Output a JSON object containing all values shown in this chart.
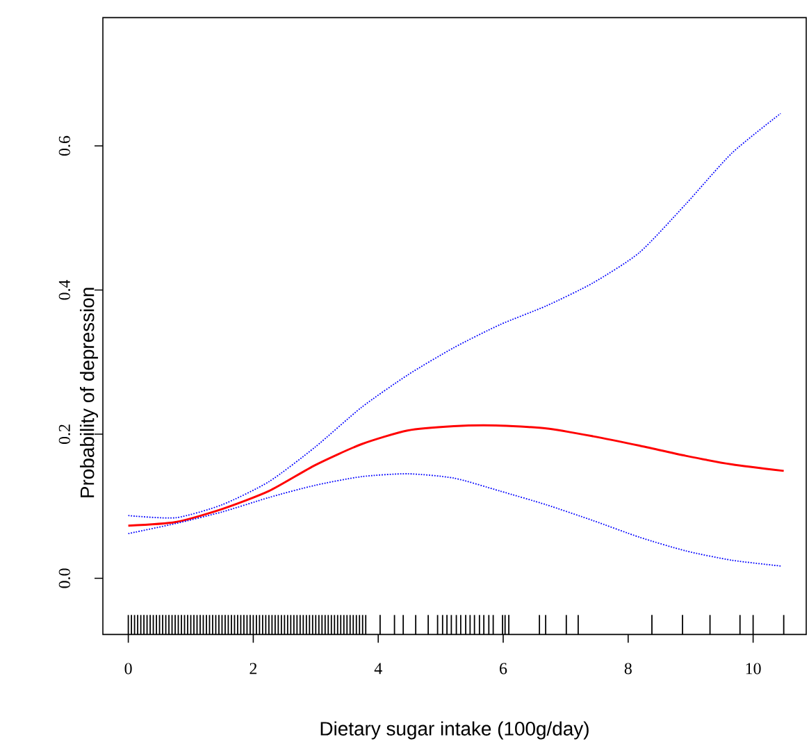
{
  "chart_data": {
    "type": "line",
    "xlabel": "Dietary sugar intake (100g/day)",
    "ylabel": "Probability of depression",
    "xlim": [
      -0.407,
      10.85
    ],
    "ylim": [
      -0.078,
      0.778
    ],
    "xticks": [
      0,
      2,
      4,
      6,
      8,
      10
    ],
    "yticks": [
      {
        "value": 0,
        "label": "0.0"
      },
      0.2,
      0.4,
      0.6
    ],
    "series": [
      {
        "type": "line",
        "color": "#ff0000",
        "line_style": "solid",
        "x": [
          0,
          0.76,
          1.5,
          2.25,
          2.99,
          3.73,
          4.47,
          5.21,
          5.88,
          6.69,
          7.44,
          8.18,
          8.92,
          9.66,
          10.49
        ],
        "values": [
          0.073,
          0.078,
          0.096,
          0.121,
          0.157,
          0.186,
          0.205,
          0.211,
          0.212,
          0.208,
          0.197,
          0.184,
          0.17,
          0.158,
          0.149
        ]
      },
      {
        "type": "line",
        "color": "#0000ff",
        "line_style": "dotted",
        "x": [
          0,
          0.76,
          1.5,
          2.25,
          2.99,
          3.73,
          4.47,
          5.21,
          5.95,
          6.69,
          7.44,
          8.18,
          8.92,
          9.66,
          10.44
        ],
        "values": [
          0.087,
          0.084,
          0.102,
          0.134,
          0.182,
          0.237,
          0.282,
          0.32,
          0.352,
          0.378,
          0.41,
          0.452,
          0.519,
          0.59,
          0.645
        ]
      },
      {
        "type": "line",
        "color": "#0000ff",
        "line_style": "dotted",
        "x": [
          0,
          0.76,
          1.5,
          2.25,
          2.99,
          3.73,
          4.47,
          5.21,
          5.95,
          6.69,
          7.44,
          8.18,
          8.92,
          9.66,
          10.44
        ],
        "values": [
          0.062,
          0.076,
          0.092,
          0.112,
          0.129,
          0.141,
          0.145,
          0.139,
          0.121,
          0.102,
          0.08,
          0.057,
          0.038,
          0.025,
          0.017
        ]
      },
      {
        "type": "bar",
        "color": "#000000",
        "x": [
          0,
          0.05,
          0.1,
          0.15,
          0.2,
          0.25,
          0.3,
          0.35,
          0.4,
          0.45,
          0.5,
          0.55,
          0.6,
          0.65,
          0.7,
          0.75,
          0.8,
          0.85,
          0.9,
          0.95,
          1,
          1.05,
          1.1,
          1.15,
          1.2,
          1.25,
          1.3,
          1.35,
          1.4,
          1.45,
          1.5,
          1.55,
          1.6,
          1.65,
          1.7,
          1.75,
          1.8,
          1.85,
          1.9,
          1.95,
          2,
          2.05,
          2.1,
          2.15,
          2.2,
          2.25,
          2.3,
          2.35,
          2.4,
          2.45,
          2.5,
          2.55,
          2.6,
          2.65,
          2.7,
          2.75,
          2.8,
          2.85,
          2.9,
          2.95,
          3,
          3.05,
          3.1,
          3.15,
          3.2,
          3.25,
          3.3,
          3.35,
          3.4,
          3.45,
          3.5,
          3.55,
          3.6,
          3.65,
          3.7,
          3.75,
          3.8,
          4.03,
          4.26,
          4.4,
          4.6,
          4.8,
          4.95,
          5.03,
          5.1,
          5.17,
          5.25,
          5.32,
          5.4,
          5.47,
          5.54,
          5.62,
          5.69,
          5.77,
          5.84,
          5.99,
          6.03,
          6.09,
          6.58,
          6.68,
          7.01,
          7.2,
          8.38,
          8.87,
          9.31,
          9.79,
          10,
          10.49
        ],
        "values": [
          0.027,
          0.027,
          0.027,
          0.027,
          0.027,
          0.027,
          0.027,
          0.027,
          0.027,
          0.027,
          0.027,
          0.027,
          0.027,
          0.027,
          0.027,
          0.027,
          0.027,
          0.027,
          0.027,
          0.027,
          0.027,
          0.027,
          0.027,
          0.027,
          0.027,
          0.027,
          0.027,
          0.027,
          0.027,
          0.027,
          0.027,
          0.027,
          0.027,
          0.027,
          0.027,
          0.027,
          0.027,
          0.027,
          0.027,
          0.027,
          0.027,
          0.027,
          0.027,
          0.027,
          0.027,
          0.027,
          0.027,
          0.027,
          0.027,
          0.027,
          0.027,
          0.027,
          0.027,
          0.027,
          0.027,
          0.027,
          0.027,
          0.027,
          0.027,
          0.027,
          0.027,
          0.027,
          0.027,
          0.027,
          0.027,
          0.027,
          0.027,
          0.027,
          0.027,
          0.027,
          0.027,
          0.027,
          0.027,
          0.027,
          0.027,
          0.027,
          0.027,
          0.027,
          0.027,
          0.027,
          0.027,
          0.027,
          0.027,
          0.027,
          0.027,
          0.027,
          0.027,
          0.027,
          0.027,
          0.027,
          0.027,
          0.027,
          0.027,
          0.027,
          0.027,
          0.027,
          0.027,
          0.027,
          0.027,
          0.027,
          0.027,
          0.027,
          0.027,
          0.027,
          0.027,
          0.027,
          0.027,
          0.027
        ],
        "base": [
          -0.078,
          -0.078,
          -0.078,
          -0.078,
          -0.078,
          -0.078,
          -0.078,
          -0.078,
          -0.078,
          -0.078,
          -0.078,
          -0.078,
          -0.078,
          -0.078,
          -0.078,
          -0.078,
          -0.078,
          -0.078,
          -0.078,
          -0.078,
          -0.078,
          -0.078,
          -0.078,
          -0.078,
          -0.078,
          -0.078,
          -0.078,
          -0.078,
          -0.078,
          -0.078,
          -0.078,
          -0.078,
          -0.078,
          -0.078,
          -0.078,
          -0.078,
          -0.078,
          -0.078,
          -0.078,
          -0.078,
          -0.078,
          -0.078,
          -0.078,
          -0.078,
          -0.078,
          -0.078,
          -0.078,
          -0.078,
          -0.078,
          -0.078,
          -0.078,
          -0.078,
          -0.078,
          -0.078,
          -0.078,
          -0.078,
          -0.078,
          -0.078,
          -0.078,
          -0.078,
          -0.078,
          -0.078,
          -0.078,
          -0.078,
          -0.078,
          -0.078,
          -0.078,
          -0.078,
          -0.078,
          -0.078,
          -0.078,
          -0.078,
          -0.078,
          -0.078,
          -0.078,
          -0.078,
          -0.078,
          -0.078,
          -0.078,
          -0.078,
          -0.078,
          -0.078,
          -0.078,
          -0.078,
          -0.078,
          -0.078,
          -0.078,
          -0.078,
          -0.078,
          -0.078,
          -0.078,
          -0.078,
          -0.078,
          -0.078,
          -0.078,
          -0.078,
          -0.078,
          -0.078,
          -0.078,
          -0.078,
          -0.078,
          -0.078,
          -0.078,
          -0.078,
          -0.078,
          -0.078,
          -0.078,
          -0.078
        ]
      }
    ]
  }
}
